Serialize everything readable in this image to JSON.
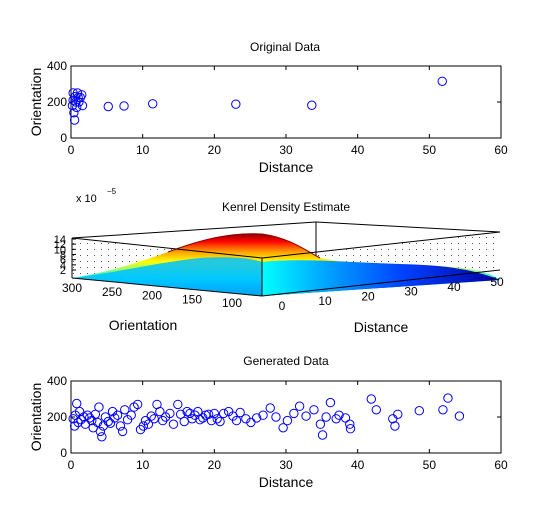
{
  "colors": {
    "marker": "#0000ff",
    "axes": "#000000",
    "background": "#ffffff"
  },
  "chart_data": [
    {
      "type": "scatter",
      "title": "Original Data",
      "xlabel": "Distance",
      "ylabel": "Orientation",
      "xlim": [
        0,
        60
      ],
      "ylim": [
        0,
        400
      ],
      "xticks": [
        "0",
        "10",
        "20",
        "30",
        "40",
        "50",
        "60"
      ],
      "yticks": [
        "0",
        "200",
        "400"
      ],
      "marker": "circle-open",
      "points": [
        [
          0.2,
          180
        ],
        [
          0.3,
          250
        ],
        [
          0.3,
          210
        ],
        [
          0.4,
          140
        ],
        [
          0.5,
          100
        ],
        [
          0.6,
          230
        ],
        [
          0.7,
          200
        ],
        [
          0.8,
          170
        ],
        [
          0.9,
          250
        ],
        [
          1.0,
          225
        ],
        [
          1.1,
          200
        ],
        [
          1.3,
          225
        ],
        [
          1.5,
          240
        ],
        [
          1.6,
          180
        ],
        [
          5.2,
          175
        ],
        [
          7.4,
          178
        ],
        [
          11.4,
          190
        ],
        [
          23.0,
          188
        ],
        [
          33.6,
          182
        ],
        [
          51.8,
          315
        ]
      ]
    },
    {
      "type": "surface",
      "title": "Kenrel Density Estimate",
      "exponent_label": "x 10",
      "exponent_power": "−5",
      "xlabel": "Distance",
      "ylabel": "Orientation",
      "zticks": [
        "2",
        "4",
        "6",
        "8",
        "10",
        "12",
        "14"
      ],
      "xticks": [
        "0",
        "10",
        "20",
        "30",
        "40",
        "50"
      ],
      "yticks": [
        "300",
        "250",
        "200",
        "150",
        "100"
      ],
      "colormap": "jet",
      "peak_z": 14
    },
    {
      "type": "scatter",
      "title": "Generated Data",
      "xlabel": "Distance",
      "ylabel": "Orientation",
      "xlim": [
        0,
        60
      ],
      "ylim": [
        0,
        400
      ],
      "xticks": [
        "0",
        "10",
        "20",
        "30",
        "40",
        "50",
        "60"
      ],
      "yticks": [
        "0",
        "200",
        "400"
      ],
      "marker": "circle-open",
      "points": [
        [
          0.3,
          190
        ],
        [
          0.5,
          150
        ],
        [
          0.6,
          210
        ],
        [
          0.8,
          275
        ],
        [
          1.0,
          170
        ],
        [
          1.2,
          230
        ],
        [
          1.4,
          185
        ],
        [
          1.8,
          200
        ],
        [
          2.0,
          160
        ],
        [
          2.3,
          210
        ],
        [
          2.6,
          195
        ],
        [
          2.9,
          180
        ],
        [
          3.1,
          140
        ],
        [
          3.4,
          215
        ],
        [
          3.7,
          170
        ],
        [
          3.9,
          255
        ],
        [
          4.1,
          120
        ],
        [
          4.3,
          90
        ],
        [
          4.5,
          150
        ],
        [
          4.8,
          200
        ],
        [
          5.2,
          175
        ],
        [
          5.5,
          165
        ],
        [
          5.8,
          230
        ],
        [
          6.1,
          195
        ],
        [
          6.5,
          210
        ],
        [
          6.9,
          150
        ],
        [
          7.2,
          120
        ],
        [
          7.5,
          240
        ],
        [
          7.9,
          185
        ],
        [
          8.4,
          210
        ],
        [
          8.8,
          255
        ],
        [
          9.3,
          270
        ],
        [
          9.7,
          130
        ],
        [
          10.1,
          150
        ],
        [
          10.4,
          180
        ],
        [
          10.8,
          160
        ],
        [
          11.2,
          205
        ],
        [
          11.6,
          190
        ],
        [
          12.0,
          270
        ],
        [
          12.4,
          230
        ],
        [
          12.8,
          180
        ],
        [
          13.2,
          200
        ],
        [
          13.8,
          220
        ],
        [
          14.3,
          160
        ],
        [
          14.9,
          270
        ],
        [
          15.3,
          215
        ],
        [
          15.8,
          175
        ],
        [
          16.2,
          230
        ],
        [
          16.6,
          220
        ],
        [
          16.9,
          190
        ],
        [
          17.3,
          210
        ],
        [
          17.7,
          230
        ],
        [
          18.0,
          185
        ],
        [
          18.4,
          195
        ],
        [
          18.8,
          210
        ],
        [
          19.2,
          215
        ],
        [
          19.6,
          180
        ],
        [
          20.0,
          220
        ],
        [
          20.4,
          190
        ],
        [
          20.8,
          175
        ],
        [
          21.3,
          220
        ],
        [
          22.0,
          230
        ],
        [
          22.6,
          205
        ],
        [
          23.1,
          180
        ],
        [
          23.6,
          225
        ],
        [
          24.4,
          190
        ],
        [
          25.1,
          170
        ],
        [
          25.9,
          195
        ],
        [
          26.8,
          210
        ],
        [
          27.8,
          250
        ],
        [
          28.6,
          200
        ],
        [
          29.6,
          140
        ],
        [
          30.2,
          180
        ],
        [
          31.1,
          220
        ],
        [
          31.9,
          260
        ],
        [
          32.8,
          205
        ],
        [
          33.9,
          240
        ],
        [
          34.8,
          160
        ],
        [
          35.1,
          100
        ],
        [
          35.6,
          200
        ],
        [
          36.2,
          280
        ],
        [
          37.0,
          190
        ],
        [
          37.4,
          210
        ],
        [
          38.3,
          195
        ],
        [
          38.9,
          160
        ],
        [
          39.0,
          135
        ],
        [
          41.9,
          300
        ],
        [
          42.6,
          240
        ],
        [
          44.9,
          190
        ],
        [
          45.2,
          150
        ],
        [
          45.6,
          215
        ],
        [
          48.6,
          235
        ],
        [
          51.9,
          240
        ],
        [
          52.6,
          305
        ],
        [
          54.2,
          205
        ]
      ]
    }
  ]
}
